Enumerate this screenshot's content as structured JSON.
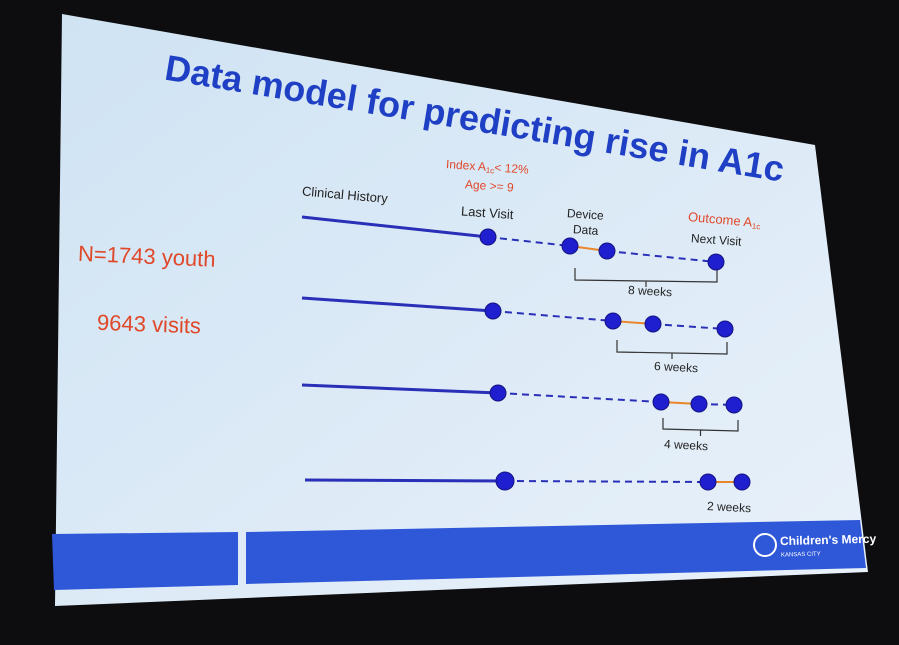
{
  "title": "Data model for predicting rise in A1c",
  "cohort": {
    "n": "N=1743 youth",
    "visits": "9643 visits"
  },
  "criteria": {
    "index": {
      "prefix": "Index A",
      "sub": "1c",
      "suffix": "< 12%"
    },
    "age": "Age >= 9"
  },
  "labels": {
    "clinical_history": "Clinical History",
    "last_visit": "Last Visit",
    "device_data": [
      "Device",
      "Data"
    ],
    "outcome": {
      "prefix": "Outcome A",
      "sub": "1c"
    },
    "next_visit": "Next Visit"
  },
  "timelines": [
    {
      "window": "8 weeks"
    },
    {
      "window": "6 weeks"
    },
    {
      "window": "4 weeks"
    },
    {
      "window": "2 weeks"
    }
  ],
  "logo": {
    "name": "Children's Mercy",
    "city": "KANSAS CITY"
  }
}
